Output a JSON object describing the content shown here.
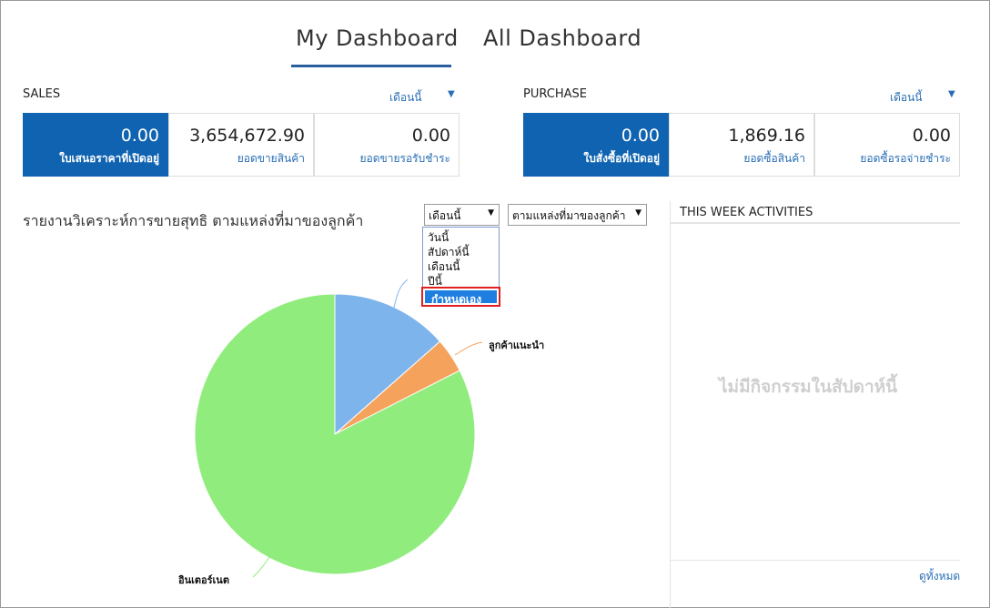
{
  "tabs": {
    "my_dashboard": "My  Dashboard",
    "all_dashboard": "All  Dashboard"
  },
  "sales": {
    "title": "SALES",
    "period": "เดือนนี้",
    "tiles": [
      {
        "value": "0.00",
        "label": "ใบเสนอราคาที่เปิดอยู่"
      },
      {
        "value": "3,654,672.90",
        "label": "ยอดขายสินค้า"
      },
      {
        "value": "0.00",
        "label": "ยอดขายรอรับชำระ"
      }
    ]
  },
  "purchase": {
    "title": "PURCHASE",
    "period": "เดือนนี้",
    "tiles": [
      {
        "value": "0.00",
        "label": "ใบสั่งซื้อที่เปิดอยู่"
      },
      {
        "value": "1,869.16",
        "label": "ยอดซื้อสินค้า"
      },
      {
        "value": "0.00",
        "label": "ยอดซื้อรอจ่ายชำระ"
      }
    ]
  },
  "report": {
    "title": "รายงานวิเคราะห์การขายสุทธิ ตามแหล่งที่มาของลูกค้า",
    "period_select": "เดือนนี้",
    "source_select": "ตามแหล่งที่มาของลูกค้า",
    "period_options": [
      "วันนี้",
      "สัปดาห์นี้",
      "เดือนนี้",
      "ปีนี้",
      "กำหนดเอง"
    ],
    "highlighted_option": "กำหนดเอง"
  },
  "chart_data": {
    "type": "pie",
    "slices": [
      {
        "label": "",
        "value": 13.5,
        "color": "#7eb4ec"
      },
      {
        "label": "ลูกค้าแนะนำ",
        "value": 4.0,
        "color": "#f5a35c"
      },
      {
        "label": "อินเตอร์เนต",
        "value": 82.5,
        "color": "#90ed7d"
      }
    ]
  },
  "activities": {
    "title": "THIS WEEK ACTIVITIES",
    "empty": "ไม่มีกิจกรรมในสัปดาห์นี้",
    "view_all": "ดูทั้งหมด"
  },
  "colors": {
    "primary": "#0f63b0",
    "link": "#2a6fb5",
    "tab_underline": "#2a5f9e",
    "highlight_border": "#e02020"
  }
}
